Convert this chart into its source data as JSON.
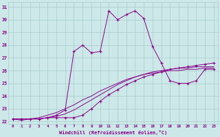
{
  "xlabel": "Windchill (Refroidissement éolien,°C)",
  "xlim": [
    -0.5,
    23.5
  ],
  "ylim": [
    21.8,
    31.4
  ],
  "yticks": [
    22,
    23,
    24,
    25,
    26,
    27,
    28,
    29,
    30,
    31
  ],
  "xticks": [
    0,
    1,
    2,
    3,
    4,
    5,
    6,
    7,
    8,
    9,
    10,
    11,
    12,
    13,
    14,
    15,
    16,
    17,
    18,
    19,
    20,
    21,
    22,
    23
  ],
  "bg_color": "#cce8e8",
  "line_color": "#880088",
  "grid_color": "#aacccc",
  "lines": [
    [
      22.2,
      22.1,
      22.2,
      22.2,
      22.3,
      22.5,
      22.9,
      27.5,
      28.0,
      27.4,
      27.5,
      30.7,
      30.0,
      30.4,
      30.7,
      30.1,
      27.9,
      26.6,
      25.2,
      25.0,
      25.0,
      25.2,
      26.1,
      26.1
    ],
    [
      22.2,
      22.2,
      22.2,
      22.2,
      22.3,
      22.3,
      22.3,
      22.3,
      22.5,
      23.0,
      23.6,
      24.1,
      24.5,
      24.9,
      25.2,
      25.5,
      25.7,
      25.9,
      26.1,
      26.2,
      26.3,
      26.4,
      26.5,
      26.6
    ],
    [
      22.2,
      22.2,
      22.2,
      22.2,
      22.3,
      22.4,
      22.6,
      22.9,
      23.3,
      23.7,
      24.1,
      24.5,
      24.9,
      25.2,
      25.5,
      25.7,
      25.9,
      26.0,
      26.1,
      26.2,
      26.2,
      26.3,
      26.3,
      26.3
    ],
    [
      22.2,
      22.2,
      22.2,
      22.3,
      22.5,
      22.7,
      23.0,
      23.3,
      23.7,
      24.0,
      24.4,
      24.7,
      25.0,
      25.3,
      25.5,
      25.7,
      25.8,
      25.9,
      26.0,
      26.0,
      26.1,
      26.1,
      26.2,
      26.2
    ]
  ],
  "has_markers": [
    true,
    true,
    false,
    false
  ]
}
